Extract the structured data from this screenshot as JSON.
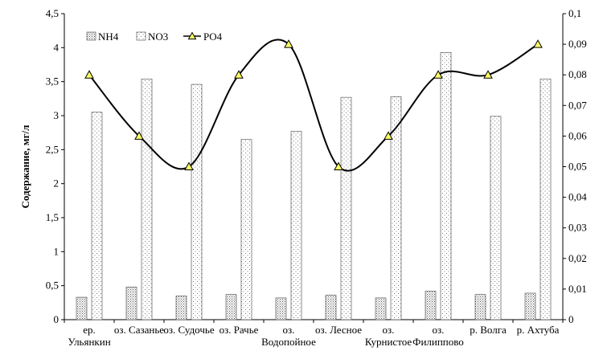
{
  "chart_data": {
    "type": "bar",
    "categories": [
      [
        "ер.",
        "Ульянкин"
      ],
      [
        "оз. Сазанье"
      ],
      [
        "оз. Судочье"
      ],
      [
        "оз. Рачье"
      ],
      [
        "оз.",
        "Водопойное"
      ],
      [
        "оз. Лесное"
      ],
      [
        "оз.",
        "Курнистое"
      ],
      [
        "оз.",
        "Филиппово"
      ],
      [
        "р. Волга"
      ],
      [
        "р. Ахтуба"
      ]
    ],
    "series": [
      {
        "name": "NH4",
        "type": "bar",
        "axis": "left",
        "values": [
          0.33,
          0.48,
          0.35,
          0.37,
          0.32,
          0.36,
          0.32,
          0.42,
          0.37,
          0.39
        ],
        "pattern": "dense-dots"
      },
      {
        "name": "NO3",
        "type": "bar",
        "axis": "left",
        "values": [
          3.05,
          3.54,
          3.46,
          2.65,
          2.77,
          3.27,
          3.28,
          3.93,
          2.99,
          3.54
        ],
        "pattern": "sparse-dots"
      },
      {
        "name": "PO4",
        "type": "line",
        "axis": "right",
        "smooth": true,
        "values": [
          0.08,
          0.06,
          0.05,
          0.08,
          0.09,
          0.05,
          0.06,
          0.08,
          0.08,
          0.09
        ],
        "marker": "triangle",
        "marker_color": "#ffff66",
        "line_color": "#000000"
      }
    ],
    "ylabel": "Содержание, мг/л",
    "ylim": [
      0,
      4.5
    ],
    "y_ticks": [
      "0",
      "0,5",
      "1",
      "1,5",
      "2",
      "2,5",
      "3",
      "3,5",
      "4",
      "4,5"
    ],
    "y2lim": [
      0,
      0.1
    ],
    "y2_ticks": [
      "0",
      "0,01",
      "0,02",
      "0,03",
      "0,04",
      "0,05",
      "0,06",
      "0,07",
      "0,08",
      "0,09",
      "0,1"
    ],
    "grid": false,
    "legend_position": "top-left"
  }
}
